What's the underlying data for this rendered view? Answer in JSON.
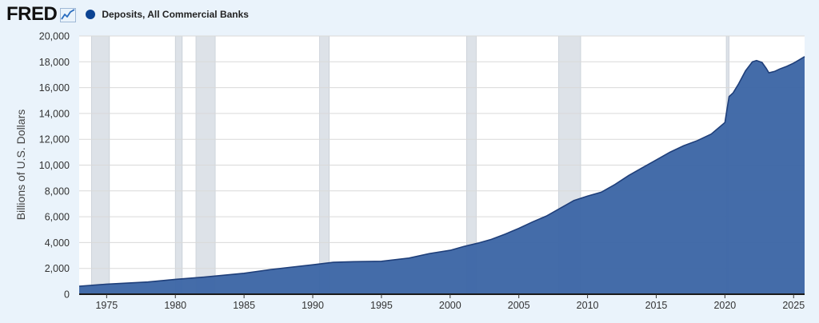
{
  "header": {
    "logo_text": "FRED",
    "logo_icon": "line-chart-icon"
  },
  "colors": {
    "background": "#eaf3fb",
    "plot_background": "#ffffff",
    "series_fill": "#3e67a6",
    "series_line": "#1f3f7a",
    "legend_dot": "#0b4393",
    "recession": "#dde2e8",
    "grid": "#d9d9d9"
  },
  "chart_data": {
    "type": "area",
    "title": "",
    "ylabel": "Billions of U.S. Dollars",
    "xlabel": "",
    "ylim": [
      0,
      20000
    ],
    "xlim": [
      1973.0,
      2025.8
    ],
    "grid": true,
    "legend": "top-left",
    "y_ticks": [
      0,
      2000,
      4000,
      6000,
      8000,
      10000,
      12000,
      14000,
      16000,
      18000,
      20000
    ],
    "y_tick_labels": [
      "0",
      "2,000",
      "4,000",
      "6,000",
      "8,000",
      "10,000",
      "12,000",
      "14,000",
      "16,000",
      "18,000",
      "20,000"
    ],
    "x_ticks": [
      1975,
      1980,
      1985,
      1990,
      1995,
      2000,
      2005,
      2010,
      2015,
      2020,
      2025
    ],
    "x_tick_labels": [
      "1975",
      "1980",
      "1985",
      "1990",
      "1995",
      "2000",
      "2005",
      "2010",
      "2015",
      "2020",
      "2025"
    ],
    "recessions": [
      [
        1973.9,
        1975.2
      ],
      [
        1980.0,
        1980.5
      ],
      [
        1981.5,
        1982.9
      ],
      [
        1990.5,
        1991.2
      ],
      [
        2001.2,
        2001.9
      ],
      [
        2007.9,
        2009.5
      ],
      [
        2020.1,
        2020.3
      ]
    ],
    "series": [
      {
        "name": "Deposits, All Commercial Banks",
        "x": [
          1973.0,
          1975.0,
          1978.0,
          1980.0,
          1982.0,
          1985.0,
          1987.0,
          1990.0,
          1991.5,
          1993.0,
          1995.0,
          1997.0,
          1998.5,
          2000.0,
          2001.0,
          2002.0,
          2003.0,
          2004.0,
          2005.0,
          2006.0,
          2007.0,
          2008.0,
          2009.0,
          2010.0,
          2011.0,
          2012.0,
          2013.0,
          2014.0,
          2015.0,
          2016.0,
          2017.0,
          2018.0,
          2019.0,
          2020.0,
          2020.15,
          2020.3,
          2020.6,
          2021.0,
          2021.5,
          2022.0,
          2022.3,
          2022.7,
          2023.0,
          2023.2,
          2023.6,
          2024.0,
          2024.5,
          2025.0,
          2025.4,
          2025.8
        ],
        "values": [
          620,
          780,
          950,
          1150,
          1320,
          1620,
          1920,
          2280,
          2470,
          2520,
          2550,
          2800,
          3150,
          3400,
          3700,
          3950,
          4250,
          4650,
          5100,
          5600,
          6050,
          6650,
          7250,
          7600,
          7900,
          8500,
          9200,
          9800,
          10400,
          11000,
          11500,
          11900,
          12400,
          13300,
          14300,
          15300,
          15600,
          16300,
          17300,
          18000,
          18100,
          17950,
          17500,
          17150,
          17250,
          17450,
          17650,
          17900,
          18150,
          18400
        ]
      }
    ]
  }
}
